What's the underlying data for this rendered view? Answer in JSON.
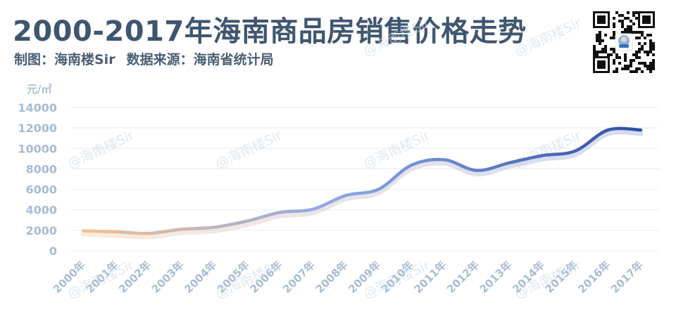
{
  "header": {
    "title": "2000-2017年海南商品房销售价格走势",
    "maker": "制图：海南楼Sir",
    "source": "数据来源：海南省统计局"
  },
  "watermark_text": "@海南楼Sir",
  "colors": {
    "title": "#3f566f",
    "axis_text": "#a7bcd3",
    "line_start": "#f4c08f",
    "line_mid": "#8fa8e4",
    "line_end": "#2f4ea3"
  },
  "chart_data": {
    "type": "line",
    "title": "2000-2017年海南商品房销售价格走势",
    "ylabel": "元/㎡",
    "xlabel": "",
    "ylim": [
      0,
      14000
    ],
    "yticks": [
      "14000",
      "12000",
      "10000",
      "8000",
      "6000",
      "4000",
      "2000",
      "0"
    ],
    "grid": true,
    "categories": [
      "2000年",
      "2001年",
      "2002年",
      "2003年",
      "2004年",
      "2005年",
      "2006年",
      "2007年",
      "2008年",
      "2009年",
      "2010年",
      "2011年",
      "2012年",
      "2013年",
      "2014年",
      "2015年",
      "2016年",
      "2017年"
    ],
    "series": [
      {
        "values": [
          1950,
          1850,
          1700,
          2100,
          2300,
          2900,
          3750,
          4050,
          5400,
          6000,
          8350,
          8900,
          7850,
          8600,
          9300,
          9750,
          11800,
          11800
        ]
      }
    ]
  }
}
